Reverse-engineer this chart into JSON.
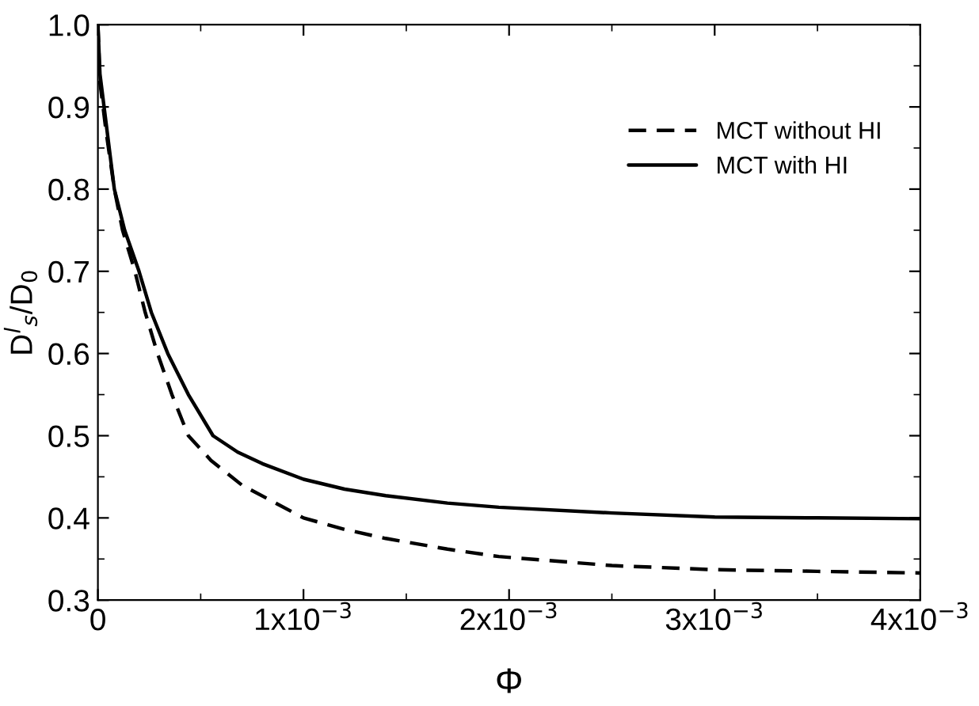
{
  "chart_data": {
    "type": "line",
    "xlabel": "Φ",
    "ylabel": "D$^{l}$$_{s}$/D$_{0}$",
    "xlim": [
      0,
      0.004
    ],
    "ylim": [
      0.3,
      1.0
    ],
    "xticks": [
      0,
      {
        "value": 0.001,
        "label": "1x10$^{−3}$"
      },
      {
        "value": 0.002,
        "label": "2x10$^{−3}$"
      },
      {
        "value": 0.003,
        "label": "3x10$^{−3}$"
      },
      {
        "value": 0.004,
        "label": "4x10$^{−3}$"
      }
    ],
    "yticks": [
      {
        "value": 0.3,
        "label": "0.3"
      },
      {
        "value": 0.4,
        "label": "0.4"
      },
      {
        "value": 0.5,
        "label": "0.5"
      },
      {
        "value": 0.6,
        "label": "0.6"
      },
      {
        "value": 0.7,
        "label": "0.7"
      },
      {
        "value": 0.8,
        "label": "0.8"
      },
      {
        "value": 0.9,
        "label": "0.9"
      },
      {
        "value": 1.0,
        "label": "1.0"
      }
    ],
    "grid": false,
    "legend": "upper right",
    "marker": "none",
    "series": [
      {
        "name": "MCT without HI",
        "color": "#000000",
        "line_style": "dashed",
        "x": [
          0,
          1e-05,
          4e-05,
          8e-05,
          0.00012,
          0.00018,
          0.00023,
          0.00029,
          0.00036,
          0.00044,
          0.00055,
          0.0007,
          0.00085,
          0.001,
          0.0012,
          0.0014,
          0.0017,
          0.00195,
          0.0025,
          0.003,
          0.0035,
          0.004
        ],
        "values": [
          1.0,
          0.93,
          0.87,
          0.8,
          0.75,
          0.7,
          0.65,
          0.6,
          0.55,
          0.5,
          0.47,
          0.44,
          0.42,
          0.4,
          0.386,
          0.375,
          0.362,
          0.353,
          0.342,
          0.337,
          0.335,
          0.333
        ]
      },
      {
        "name": "MCT with HI",
        "color": "#000000",
        "line_style": "solid",
        "x": [
          0,
          1e-05,
          4e-05,
          8e-05,
          0.00013,
          0.0002,
          0.00026,
          0.00034,
          0.00044,
          0.00056,
          0.00068,
          0.0008,
          0.001,
          0.0012,
          0.0014,
          0.0017,
          0.00195,
          0.0025,
          0.003,
          0.0035,
          0.004
        ],
        "values": [
          1.0,
          0.94,
          0.88,
          0.8,
          0.75,
          0.7,
          0.65,
          0.6,
          0.55,
          0.5,
          0.48,
          0.466,
          0.447,
          0.435,
          0.427,
          0.418,
          0.413,
          0.406,
          0.401,
          0.4,
          0.399
        ]
      }
    ]
  }
}
